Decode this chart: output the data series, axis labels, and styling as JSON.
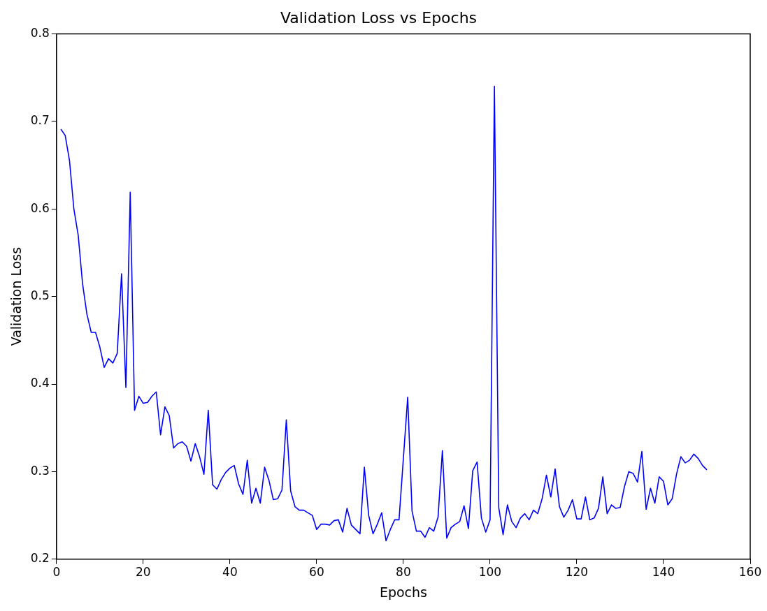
{
  "chart_data": {
    "type": "line",
    "title": "Validation Loss vs Epochs",
    "xlabel": "Epochs",
    "ylabel": "Validation Loss",
    "x": [
      1,
      2,
      3,
      4,
      5,
      6,
      7,
      8,
      9,
      10,
      11,
      12,
      13,
      14,
      15,
      16,
      17,
      18,
      19,
      20,
      21,
      22,
      23,
      24,
      25,
      26,
      27,
      28,
      29,
      30,
      31,
      32,
      33,
      34,
      35,
      36,
      37,
      38,
      39,
      40,
      41,
      42,
      43,
      44,
      45,
      46,
      47,
      48,
      49,
      50,
      51,
      52,
      53,
      54,
      55,
      56,
      57,
      58,
      59,
      60,
      61,
      62,
      63,
      64,
      65,
      66,
      67,
      68,
      69,
      70,
      71,
      72,
      73,
      74,
      75,
      76,
      77,
      78,
      79,
      80,
      81,
      82,
      83,
      84,
      85,
      86,
      87,
      88,
      89,
      90,
      91,
      92,
      93,
      94,
      95,
      96,
      97,
      98,
      99,
      100,
      101,
      102,
      103,
      104,
      105,
      106,
      107,
      108,
      109,
      110,
      111,
      112,
      113,
      114,
      115,
      116,
      117,
      118,
      119,
      120,
      121,
      122,
      123,
      124,
      125,
      126,
      127,
      128,
      129,
      130,
      131,
      132,
      133,
      134,
      135,
      136,
      137,
      138,
      139,
      140,
      141,
      142,
      143,
      144,
      145,
      146,
      147,
      148,
      149,
      150
    ],
    "series": [
      {
        "color": "#0000ff",
        "values": [
          0.691,
          0.684,
          0.655,
          0.6,
          0.57,
          0.515,
          0.48,
          0.459,
          0.459,
          0.442,
          0.419,
          0.429,
          0.424,
          0.435,
          0.526,
          0.396,
          0.619,
          0.37,
          0.386,
          0.378,
          0.379,
          0.386,
          0.391,
          0.342,
          0.374,
          0.364,
          0.327,
          0.332,
          0.334,
          0.329,
          0.312,
          0.332,
          0.317,
          0.297,
          0.37,
          0.285,
          0.28,
          0.291,
          0.299,
          0.304,
          0.307,
          0.286,
          0.274,
          0.313,
          0.264,
          0.281,
          0.264,
          0.305,
          0.29,
          0.268,
          0.269,
          0.279,
          0.359,
          0.278,
          0.26,
          0.256,
          0.256,
          0.253,
          0.25,
          0.234,
          0.24,
          0.24,
          0.239,
          0.244,
          0.245,
          0.231,
          0.258,
          0.239,
          0.234,
          0.229,
          0.305,
          0.25,
          0.229,
          0.24,
          0.253,
          0.221,
          0.234,
          0.245,
          0.245,
          0.315,
          0.385,
          0.255,
          0.232,
          0.232,
          0.225,
          0.236,
          0.232,
          0.248,
          0.324,
          0.224,
          0.236,
          0.24,
          0.243,
          0.261,
          0.235,
          0.301,
          0.311,
          0.247,
          0.231,
          0.245,
          0.74,
          0.259,
          0.228,
          0.262,
          0.243,
          0.236,
          0.247,
          0.252,
          0.245,
          0.256,
          0.252,
          0.269,
          0.296,
          0.271,
          0.303,
          0.26,
          0.248,
          0.256,
          0.268,
          0.246,
          0.246,
          0.271,
          0.245,
          0.247,
          0.258,
          0.294,
          0.252,
          0.262,
          0.258,
          0.259,
          0.283,
          0.3,
          0.298,
          0.288,
          0.323,
          0.257,
          0.281,
          0.264,
          0.294,
          0.289,
          0.262,
          0.269,
          0.297,
          0.317,
          0.31,
          0.313,
          0.32,
          0.315,
          0.307,
          0.302
        ]
      }
    ],
    "xlim": [
      0,
      160
    ],
    "xticks": [
      0,
      20,
      40,
      60,
      80,
      100,
      120,
      140,
      160
    ],
    "ylim": [
      0.2,
      0.8
    ],
    "yticks": [
      0.2,
      0.3,
      0.4,
      0.5,
      0.6,
      0.7,
      0.8
    ],
    "grid": false,
    "legend": false,
    "marker": "none",
    "line_style": "solid"
  }
}
